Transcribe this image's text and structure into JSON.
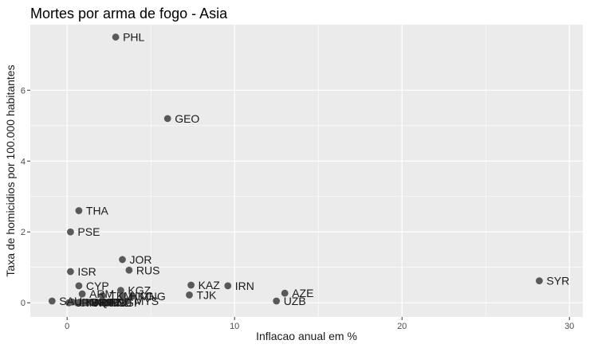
{
  "chart_data": {
    "type": "scatter",
    "title": "Mortes por arma de fogo - Asia",
    "xlabel": "Inflacao anual em %",
    "ylabel": "Taxa de homicidios por 100.000 habitantes",
    "xlim": [
      -2.2,
      30.8
    ],
    "ylim": [
      -0.4,
      7.85
    ],
    "xticks": [
      0,
      10,
      20,
      30
    ],
    "yticks": [
      0,
      2,
      4,
      6
    ],
    "grid": true,
    "panel_color": "#ebebeb",
    "point_color": "#595959",
    "points": [
      {
        "label": "PHL",
        "x": 2.9,
        "y": 7.5
      },
      {
        "label": "GEO",
        "x": 6.0,
        "y": 5.2
      },
      {
        "label": "THA",
        "x": 0.7,
        "y": 2.6
      },
      {
        "label": "PSE",
        "x": 0.2,
        "y": 2.0
      },
      {
        "label": "JOR",
        "x": 3.3,
        "y": 1.22
      },
      {
        "label": "RUS",
        "x": 3.7,
        "y": 0.92
      },
      {
        "label": "ISR",
        "x": 0.2,
        "y": 0.88
      },
      {
        "label": "SYR",
        "x": 28.2,
        "y": 0.62
      },
      {
        "label": "KAZ",
        "x": 7.4,
        "y": 0.5
      },
      {
        "label": "IRN",
        "x": 9.6,
        "y": 0.48
      },
      {
        "label": "CYP",
        "x": 0.7,
        "y": 0.48
      },
      {
        "label": "KGZ",
        "x": 3.2,
        "y": 0.35
      },
      {
        "label": "AZE",
        "x": 13.0,
        "y": 0.27
      },
      {
        "label": "TJK",
        "x": 7.3,
        "y": 0.22
      },
      {
        "label": "ARM",
        "x": 0.9,
        "y": 0.25
      },
      {
        "label": "TKM",
        "x": 2.1,
        "y": 0.2
      },
      {
        "label": "HKG",
        "x": 3.3,
        "y": 0.2
      },
      {
        "label": "MNG",
        "x": 3.9,
        "y": 0.18
      },
      {
        "label": "UZB",
        "x": 12.5,
        "y": 0.05
      },
      {
        "label": "SAU",
        "x": -0.9,
        "y": 0.05
      },
      {
        "label": "MYS",
        "x": 3.6,
        "y": 0.05
      },
      {
        "label": "LKA",
        "x": 0.3,
        "y": 0.02
      },
      {
        "label": "BHR",
        "x": 1.0,
        "y": 0.02
      },
      {
        "label": "QAT",
        "x": 1.5,
        "y": 0.02
      },
      {
        "label": "IDN",
        "x": 2.0,
        "y": 0.02
      },
      {
        "label": "TUR",
        "x": 0.6,
        "y": 0.0
      },
      {
        "label": "KOR",
        "x": 1.2,
        "y": 0.0
      },
      {
        "label": "CHN",
        "x": 1.6,
        "y": 0.0
      },
      {
        "label": "JPN",
        "x": 0.1,
        "y": 0.0
      },
      {
        "label": "IND",
        "x": 2.3,
        "y": 0.0
      },
      {
        "label": "SGP",
        "x": 2.6,
        "y": 0.0
      }
    ]
  }
}
